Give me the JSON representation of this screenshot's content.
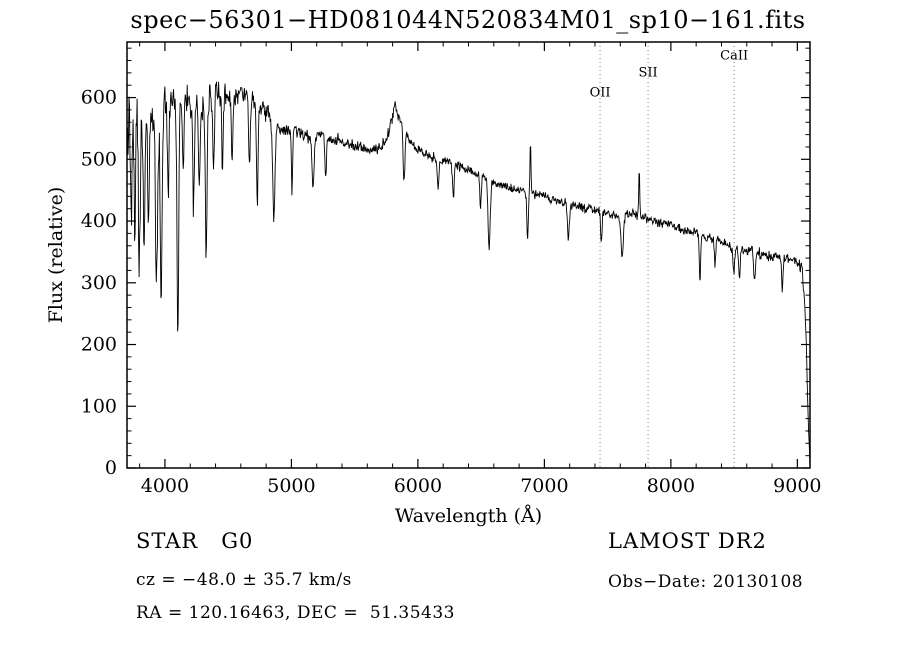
{
  "chart_data": {
    "type": "line",
    "title": "spec−56301−HD081044N520834M01_sp10−161.fits",
    "xlabel": "Wavelength (Å)",
    "ylabel": "Flux (relative)",
    "xlim": [
      3700,
      9100
    ],
    "ylim": [
      0,
      690
    ],
    "xticks": [
      4000,
      5000,
      6000,
      7000,
      8000,
      9000
    ],
    "yticks": [
      0,
      100,
      200,
      300,
      400,
      500,
      600
    ],
    "x_minor_step": 200,
    "y_minor_step": 20,
    "grid": false,
    "line_color": "#000000",
    "axis_color": "#000000",
    "reference_line_color": "#808080",
    "reference_lines": [
      {
        "label": "OII",
        "wavelength": 7440,
        "label_flux": 602
      },
      {
        "label": "SII",
        "wavelength": 7820,
        "label_flux": 634
      },
      {
        "label": "CaII",
        "wavelength": 8500,
        "label_flux": 662
      }
    ],
    "spectrum": {
      "sample_step": 4,
      "noise_seed": 20130108,
      "continuum_anchors": [
        [
          3700,
          545
        ],
        [
          3720,
          590
        ],
        [
          3760,
          580
        ],
        [
          3800,
          575
        ],
        [
          3850,
          565
        ],
        [
          3900,
          560
        ],
        [
          3950,
          570
        ],
        [
          4000,
          585
        ],
        [
          4050,
          600
        ],
        [
          4100,
          595
        ],
        [
          4150,
          605
        ],
        [
          4200,
          590
        ],
        [
          4250,
          580
        ],
        [
          4300,
          585
        ],
        [
          4350,
          600
        ],
        [
          4400,
          610
        ],
        [
          4450,
          600
        ],
        [
          4500,
          605
        ],
        [
          4550,
          600
        ],
        [
          4600,
          610
        ],
        [
          4650,
          600
        ],
        [
          4700,
          595
        ],
        [
          4750,
          585
        ],
        [
          4800,
          575
        ],
        [
          4850,
          565
        ],
        [
          4900,
          550
        ],
        [
          4950,
          545
        ],
        [
          5000,
          550
        ],
        [
          5050,
          545
        ],
        [
          5100,
          540
        ],
        [
          5150,
          535
        ],
        [
          5200,
          540
        ],
        [
          5300,
          535
        ],
        [
          5400,
          528
        ],
        [
          5500,
          522
        ],
        [
          5600,
          515
        ],
        [
          5700,
          518
        ],
        [
          5750,
          530
        ],
        [
          5820,
          585
        ],
        [
          5870,
          558
        ],
        [
          5950,
          525
        ],
        [
          6000,
          515
        ],
        [
          6100,
          505
        ],
        [
          6200,
          498
        ],
        [
          6300,
          492
        ],
        [
          6400,
          482
        ],
        [
          6500,
          472
        ],
        [
          6600,
          462
        ],
        [
          6700,
          455
        ],
        [
          6800,
          450
        ],
        [
          6900,
          445
        ],
        [
          7000,
          442
        ],
        [
          7100,
          432
        ],
        [
          7200,
          428
        ],
        [
          7300,
          422
        ],
        [
          7400,
          417
        ],
        [
          7500,
          412
        ],
        [
          7600,
          407
        ],
        [
          7700,
          412
        ],
        [
          7800,
          405
        ],
        [
          7900,
          398
        ],
        [
          8000,
          393
        ],
        [
          8100,
          386
        ],
        [
          8200,
          380
        ],
        [
          8300,
          372
        ],
        [
          8400,
          366
        ],
        [
          8500,
          357
        ],
        [
          8600,
          352
        ],
        [
          8700,
          347
        ],
        [
          8800,
          342
        ],
        [
          8900,
          340
        ],
        [
          8950,
          338
        ],
        [
          9000,
          332
        ],
        [
          9040,
          322
        ],
        [
          9065,
          240
        ],
        [
          9085,
          80
        ],
        [
          9100,
          0
        ]
      ],
      "features": [
        {
          "center": 3735,
          "amp": -170,
          "width": 6
        },
        {
          "center": 3762,
          "amp": -210,
          "width": 6
        },
        {
          "center": 3798,
          "amp": -250,
          "width": 7
        },
        {
          "center": 3835,
          "amp": -190,
          "width": 7
        },
        {
          "center": 3870,
          "amp": -160,
          "width": 6
        },
        {
          "center": 3934,
          "amp": -270,
          "width": 8
        },
        {
          "center": 3970,
          "amp": -290,
          "width": 8
        },
        {
          "center": 4026,
          "amp": -150,
          "width": 6
        },
        {
          "center": 4102,
          "amp": -380,
          "width": 7
        },
        {
          "center": 4144,
          "amp": -120,
          "width": 6
        },
        {
          "center": 4226,
          "amp": -170,
          "width": 6
        },
        {
          "center": 4272,
          "amp": -130,
          "width": 6
        },
        {
          "center": 4326,
          "amp": -250,
          "width": 7
        },
        {
          "center": 4385,
          "amp": -140,
          "width": 6
        },
        {
          "center": 4455,
          "amp": -120,
          "width": 5
        },
        {
          "center": 4531,
          "amp": -110,
          "width": 6
        },
        {
          "center": 4668,
          "amp": -110,
          "width": 6
        },
        {
          "center": 4730,
          "amp": -160,
          "width": 6
        },
        {
          "center": 4861,
          "amp": -150,
          "width": 9
        },
        {
          "center": 5005,
          "amp": -100,
          "width": 5
        },
        {
          "center": 5170,
          "amp": -85,
          "width": 8
        },
        {
          "center": 5270,
          "amp": -70,
          "width": 6
        },
        {
          "center": 5890,
          "amp": -85,
          "width": 7
        },
        {
          "center": 6160,
          "amp": -50,
          "width": 6
        },
        {
          "center": 6280,
          "amp": -55,
          "width": 6
        },
        {
          "center": 6495,
          "amp": -60,
          "width": 5
        },
        {
          "center": 6563,
          "amp": -110,
          "width": 8
        },
        {
          "center": 6867,
          "amp": -70,
          "width": 6
        },
        {
          "center": 6890,
          "amp": 80,
          "width": 4
        },
        {
          "center": 7190,
          "amp": -55,
          "width": 8
        },
        {
          "center": 7450,
          "amp": -50,
          "width": 5
        },
        {
          "center": 7615,
          "amp": -65,
          "width": 9
        },
        {
          "center": 7750,
          "amp": 75,
          "width": 4
        },
        {
          "center": 8230,
          "amp": -75,
          "width": 5
        },
        {
          "center": 8350,
          "amp": -40,
          "width": 5
        },
        {
          "center": 8498,
          "amp": -45,
          "width": 6
        },
        {
          "center": 8542,
          "amp": -48,
          "width": 6
        },
        {
          "center": 8662,
          "amp": -45,
          "width": 6
        },
        {
          "center": 8880,
          "amp": -55,
          "width": 5
        }
      ],
      "noise_regions": [
        [
          3700,
          3820,
          65
        ],
        [
          3820,
          4060,
          42
        ],
        [
          4060,
          4500,
          28
        ],
        [
          4500,
          5000,
          18
        ],
        [
          5000,
          5600,
          13
        ],
        [
          5600,
          6500,
          11
        ],
        [
          6500,
          7400,
          9
        ],
        [
          7400,
          8300,
          9
        ],
        [
          8300,
          9100,
          11
        ]
      ]
    }
  },
  "footer": {
    "class_label": "STAR   G0",
    "survey": "LAMOST DR2",
    "cz": "cz = −48.0 ± 35.7 km/s",
    "obs_date": "Obs−Date: 20130108",
    "coords": "RA = 120.16463, DEC =  51.35433"
  }
}
